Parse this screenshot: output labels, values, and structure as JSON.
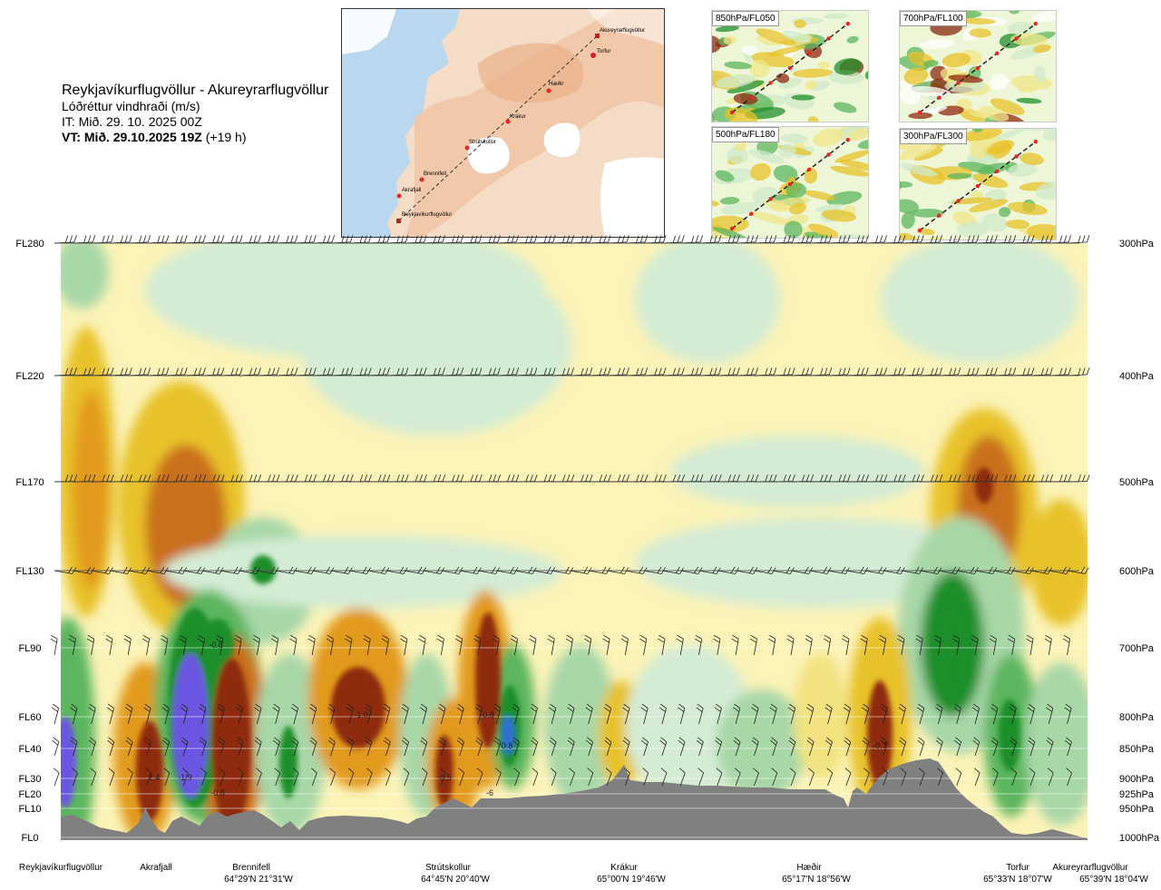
{
  "header": {
    "route": "Reykjavíkurflugvöllur - Akureyrarflugvöllur",
    "variable": "Lóðréttur vindhraði (m/s)",
    "issue": "IT: Mið. 29. 10. 2025 00Z",
    "valid_bold": "VT: Mið. 29.10.2025 19Z",
    "valid_offset": " (+19 h)"
  },
  "map": {
    "waypoints": [
      {
        "name": "Akureyrarflugvöllur"
      },
      {
        "name": "Torfur"
      },
      {
        "name": "Hæðir"
      },
      {
        "name": "Krákur"
      },
      {
        "name": "Strútskollur"
      },
      {
        "name": "Brennifell"
      },
      {
        "name": "Akrafjall"
      },
      {
        "name": "Reykjavíkurflugvöllur"
      }
    ]
  },
  "minimaps": [
    {
      "label": "850hPa/FL050"
    },
    {
      "label": "700hPa/FL100"
    },
    {
      "label": "500hPa/FL180"
    },
    {
      "label": "300hPa/FL300"
    }
  ],
  "chart_data": {
    "type": "heatmap",
    "left_axis_labels": [
      "FL280",
      "FL220",
      "FL170",
      "FL130",
      "FL90",
      "FL60",
      "FL40",
      "FL30",
      "FL20",
      "FL10",
      "FL0"
    ],
    "right_axis_labels": [
      "300hPa",
      "400hPa",
      "500hPa",
      "600hPa",
      "700hPa",
      "800hPa",
      "850hPa",
      "900hPa",
      "925hPa",
      "950hPa",
      "1000hPa"
    ],
    "pressure_levels_hpa": [
      300,
      400,
      500,
      600,
      700,
      800,
      850,
      900,
      925,
      950,
      1000
    ],
    "locations": [
      {
        "name": "Reykjavíkurflugvöllur",
        "coord": ""
      },
      {
        "name": "Akrafjall",
        "coord": ""
      },
      {
        "name": "Brennifell",
        "coord": "64°29'N 21°31'W"
      },
      {
        "name": "Strútskollur",
        "coord": "64°45'N 20°40'W"
      },
      {
        "name": "Krákur",
        "coord": "65°00'N 19°46'W"
      },
      {
        "name": "Hæðir",
        "coord": "65°17'N 18°56'W"
      },
      {
        "name": "Torfur",
        "coord": "65°33'N 18°07'W"
      },
      {
        "name": "Akureyrarflugvöllur",
        "coord": "65°39'N 18°04'W"
      }
    ],
    "contour_labels": [
      "-0.8",
      "-1.0",
      "2.4",
      "-1.9",
      "-0.8",
      "-0.5",
      "-0.8",
      "0.8",
      "-6",
      "-0.7"
    ],
    "colors": {
      "strong_up": "#6a56e0",
      "up_4": "#2f6fd2",
      "up_3": "#1f8f2a",
      "up_2": "#5cb55e",
      "up_1": "#a8d7a8",
      "up_0": "#d4ecd4",
      "neutral": "#fbf3b8",
      "down_1": "#f2e380",
      "down_2": "#e8c22a",
      "down_3": "#e29a1a",
      "down_4": "#c9701e",
      "down_5": "#8e2a10",
      "terrain": "#808080"
    }
  }
}
